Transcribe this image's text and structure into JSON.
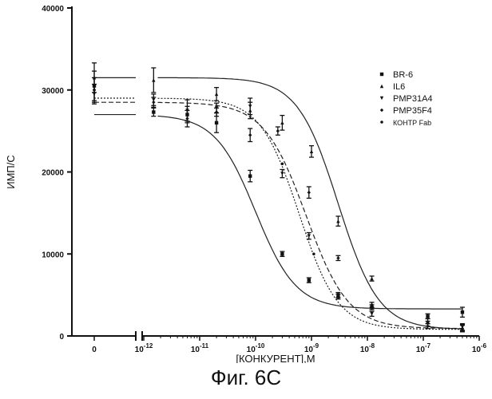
{
  "chart_data": {
    "type": "line",
    "ylabel": "ИМП/С",
    "xlabel": "[КОНКУРЕНТ],М",
    "ylim": [
      0,
      40000
    ],
    "y_ticks": [
      0,
      10000,
      20000,
      30000,
      40000
    ],
    "x_scale": "log",
    "x_break_after_zero": true,
    "x_ticks": [
      {
        "value": 0,
        "label": "0"
      },
      {
        "value": 1e-12,
        "label": "10-12"
      },
      {
        "value": 1e-11,
        "label": "10-11"
      },
      {
        "value": 1e-10,
        "label": "10-10"
      },
      {
        "value": 1e-09,
        "label": "10-9"
      },
      {
        "value": 1e-08,
        "label": "10-8"
      },
      {
        "value": 1e-07,
        "label": "10-7"
      },
      {
        "value": 1e-06,
        "label": "10-6"
      }
    ],
    "legend_position": "top-right",
    "series": [
      {
        "name": "BR-6",
        "marker": "square",
        "dash": "",
        "fit": {
          "top": 27000,
          "bottom": 3300,
          "ec50": 1e-10,
          "hill": 1.2
        },
        "points": [
          {
            "x": 0,
            "y": 30500,
            "err": 1800
          },
          {
            "x": 1.5e-12,
            "y": 27300,
            "err": 500
          },
          {
            "x": 6e-12,
            "y": 27000,
            "err": 1000
          },
          {
            "x": 2e-11,
            "y": 26000,
            "err": 1200
          },
          {
            "x": 8e-11,
            "y": 19500,
            "err": 700
          },
          {
            "x": 3e-10,
            "y": 10000,
            "err": 300
          },
          {
            "x": 9e-10,
            "y": 6800,
            "err": 300
          },
          {
            "x": 3e-09,
            "y": 4800,
            "err": 300
          },
          {
            "x": 1.2e-08,
            "y": 3500,
            "err": 300
          },
          {
            "x": 1.2e-07,
            "y": 2400,
            "err": 300
          },
          {
            "x": 5e-07,
            "y": 2900,
            "err": 600
          }
        ]
      },
      {
        "name": "IL6",
        "marker": "triangle-up",
        "dash": "",
        "fit": {
          "top": 31500,
          "bottom": 800,
          "ec50": 3e-09,
          "hill": 1.2
        },
        "points": [
          {
            "x": 0,
            "y": 31500,
            "err": 1800
          },
          {
            "x": 1.5e-12,
            "y": 31200,
            "err": 1500
          },
          {
            "x": 2e-11,
            "y": 29500,
            "err": 800
          },
          {
            "x": 8e-11,
            "y": 27500,
            "err": 1000
          },
          {
            "x": 3e-10,
            "y": 26000,
            "err": 900
          },
          {
            "x": 1e-09,
            "y": 22500,
            "err": 700
          },
          {
            "x": 3e-09,
            "y": 14000,
            "err": 600
          },
          {
            "x": 1.2e-08,
            "y": 7000,
            "err": 300
          },
          {
            "x": 1.2e-07,
            "y": 1800,
            "err": 300
          },
          {
            "x": 5e-07,
            "y": 1000,
            "err": 400
          }
        ]
      },
      {
        "name": "PMP31A4",
        "marker": "triangle-down",
        "dash": "6,3",
        "fit": {
          "top": 28500,
          "bottom": 900,
          "ec50": 8e-10,
          "hill": 1.15
        },
        "points": [
          {
            "x": 0,
            "y": 29500,
            "err": 1200
          },
          {
            "x": 1.5e-12,
            "y": 28800,
            "err": 700
          },
          {
            "x": 6e-12,
            "y": 27500,
            "err": 1300
          },
          {
            "x": 2e-11,
            "y": 27800,
            "err": 600
          },
          {
            "x": 8e-11,
            "y": 28000,
            "err": 1000
          },
          {
            "x": 3e-10,
            "y": 19800,
            "err": 500
          },
          {
            "x": 9e-10,
            "y": 12200,
            "err": 400
          },
          {
            "x": 3e-09,
            "y": 5000,
            "err": 300
          },
          {
            "x": 1.2e-08,
            "y": 2700,
            "err": 300
          },
          {
            "x": 1.2e-07,
            "y": 1500,
            "err": 300
          },
          {
            "x": 5e-07,
            "y": 1100,
            "err": 400
          }
        ]
      },
      {
        "name": "PMP35F4",
        "marker": "diamond",
        "dash": "2,2",
        "fit": {
          "top": 29000,
          "bottom": 800,
          "ec50": 6e-10,
          "hill": 1.25
        },
        "points": [
          {
            "x": 0,
            "y": 30000,
            "err": 1500
          },
          {
            "x": 1.5e-12,
            "y": 28500,
            "err": 600
          },
          {
            "x": 6e-12,
            "y": 26500,
            "err": 1000
          },
          {
            "x": 2e-11,
            "y": 27300,
            "err": 500
          },
          {
            "x": 8e-11,
            "y": 24500,
            "err": 800
          },
          {
            "x": 2.5e-10,
            "y": 25000,
            "err": 500
          },
          {
            "x": 9e-10,
            "y": 17500,
            "err": 700
          },
          {
            "x": 3e-09,
            "y": 9500,
            "err": 300
          },
          {
            "x": 1.2e-08,
            "y": 3800,
            "err": 300
          },
          {
            "x": 1.2e-07,
            "y": 1200,
            "err": 300
          },
          {
            "x": 5e-07,
            "y": 900,
            "err": 400
          }
        ]
      },
      {
        "name": "КОНТР Fab",
        "marker": "dot",
        "dash": "",
        "fit": null,
        "points": [
          {
            "x": 0,
            "y": 30000,
            "err": 0
          },
          {
            "x": 3e-10,
            "y": 21000,
            "err": 0
          },
          {
            "x": 1.1e-09,
            "y": 10000,
            "err": 0
          }
        ]
      }
    ]
  },
  "figure_caption": "Фиг. 6С"
}
